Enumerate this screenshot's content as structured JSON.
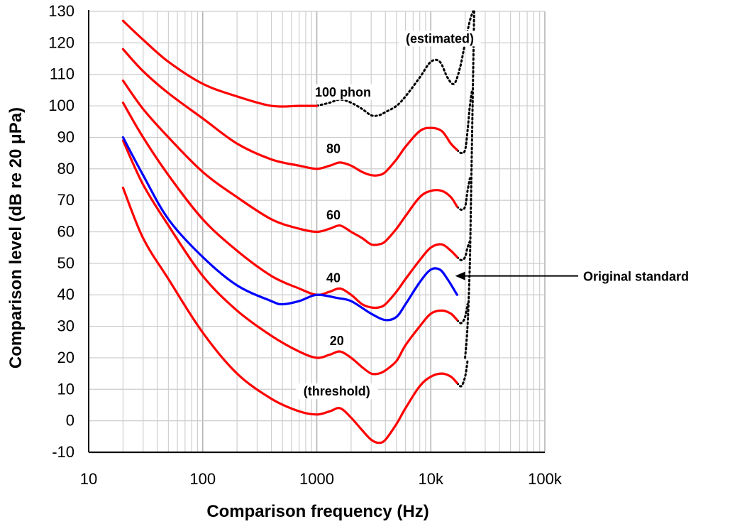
{
  "chart_data": {
    "type": "line",
    "xlabel": "Comparison frequency (Hz)",
    "ylabel": "Comparison level (dB re 20 μPa)",
    "xscale": "log",
    "xlim": [
      10,
      100000
    ],
    "ylim": [
      -10,
      130
    ],
    "x_ticks": [
      {
        "value": 10,
        "label": "10"
      },
      {
        "value": 100,
        "label": "100"
      },
      {
        "value": 1000,
        "label": "1000"
      },
      {
        "value": 10000,
        "label": "10k"
      },
      {
        "value": 100000,
        "label": "100k"
      }
    ],
    "y_ticks": [
      -10,
      0,
      10,
      20,
      30,
      40,
      50,
      60,
      70,
      80,
      90,
      100,
      110,
      120,
      130
    ],
    "grid": true,
    "colors": {
      "contour": "#ff0000",
      "standard": "#0000ff",
      "estimated": "#000000"
    },
    "series": [
      {
        "label": "(threshold)",
        "color": "#ff0000",
        "x": [
          20,
          30,
          50,
          100,
          200,
          400,
          700,
          1000,
          1300,
          1600,
          2000,
          2500,
          3000,
          3500,
          4000,
          5000,
          6000,
          8000,
          10000,
          12500,
          15000,
          17000
        ],
        "y": [
          74,
          58,
          45,
          28,
          15,
          7,
          3,
          2,
          3,
          4,
          1,
          -3,
          -6,
          -7,
          -6,
          -1,
          4,
          11,
          14,
          15,
          14,
          12
        ]
      },
      {
        "label": "20",
        "color": "#ff0000",
        "x": [
          20,
          30,
          50,
          100,
          200,
          400,
          700,
          1000,
          1300,
          1600,
          2000,
          2500,
          3000,
          3500,
          4000,
          5000,
          6000,
          8000,
          10000,
          12500,
          15000,
          17000
        ],
        "y": [
          89,
          75,
          62,
          46,
          35,
          27,
          22,
          20,
          21,
          22,
          20,
          17,
          15,
          15,
          16,
          19,
          24,
          30,
          34,
          35,
          34,
          32
        ]
      },
      {
        "label": "40",
        "color": "#ff0000",
        "x": [
          20,
          30,
          50,
          100,
          200,
          400,
          700,
          1000,
          1300,
          1600,
          2000,
          2500,
          3000,
          3500,
          4000,
          5000,
          6000,
          8000,
          10000,
          12500,
          15000,
          17000
        ],
        "y": [
          101,
          90,
          78,
          64,
          54,
          46,
          42,
          40,
          41,
          42,
          40,
          37,
          36,
          36,
          37,
          41,
          45,
          51,
          55,
          56,
          54,
          52
        ]
      },
      {
        "label": "60",
        "color": "#ff0000",
        "x": [
          20,
          30,
          50,
          100,
          200,
          400,
          700,
          1000,
          1300,
          1600,
          2000,
          2500,
          3000,
          3500,
          4000,
          5000,
          6000,
          8000,
          10000,
          12500,
          15000,
          17000
        ],
        "y": [
          108,
          99,
          90,
          79,
          71,
          64,
          61,
          60,
          61,
          62,
          60,
          58,
          56,
          56,
          57,
          61,
          65,
          71,
          73,
          73,
          71,
          68
        ]
      },
      {
        "label": "80",
        "color": "#ff0000",
        "x": [
          20,
          30,
          50,
          100,
          200,
          400,
          700,
          1000,
          1300,
          1600,
          2000,
          2500,
          3000,
          3500,
          4000,
          5000,
          6000,
          8000,
          10000,
          12500,
          15000,
          17000
        ],
        "y": [
          118,
          111,
          104,
          96,
          88,
          83,
          81,
          80,
          81,
          82,
          81,
          79,
          78,
          78,
          79,
          83,
          87,
          92,
          93,
          92,
          88,
          86
        ]
      },
      {
        "label": "100 phon",
        "color": "#ff0000",
        "x": [
          20,
          30,
          50,
          100,
          200,
          400,
          700,
          1000
        ],
        "y": [
          127,
          121,
          114,
          107,
          103,
          100,
          100,
          100
        ]
      },
      {
        "label": "Original standard",
        "color": "#0000ff",
        "x": [
          20,
          30,
          50,
          100,
          200,
          400,
          500,
          700,
          1000,
          1500,
          2000,
          3000,
          4000,
          5000,
          6000,
          8000,
          10000,
          12000,
          14000,
          17000
        ],
        "y": [
          90,
          78,
          64,
          52,
          43,
          38,
          37,
          38,
          40,
          39,
          38,
          34,
          32,
          33,
          37,
          44,
          48,
          48,
          45,
          40
        ]
      },
      {
        "label": "(estimated)",
        "color": "#000000",
        "dashed": true,
        "x": [
          1000,
          1300,
          1600,
          2000,
          2500,
          3000,
          3500,
          4000,
          5000,
          6000,
          8000,
          10000,
          12000,
          14000,
          16000,
          18000,
          20000,
          22000,
          23500
        ],
        "y": [
          100,
          101,
          102,
          101,
          99,
          97,
          97,
          98,
          100,
          103,
          109,
          114,
          114,
          109,
          107,
          112,
          120,
          127,
          130
        ]
      },
      {
        "label": "",
        "color": "#000000",
        "dashed": true,
        "x": [
          17000,
          18500,
          20000,
          21000,
          22000,
          23000
        ],
        "y": [
          86,
          85,
          86,
          92,
          100,
          105
        ]
      },
      {
        "label": "",
        "color": "#000000",
        "dashed": true,
        "x": [
          17000,
          18500,
          20000,
          21000,
          22000
        ],
        "y": [
          68,
          67,
          68,
          73,
          77
        ]
      },
      {
        "label": "",
        "color": "#000000",
        "dashed": true,
        "x": [
          17000,
          18500,
          20000,
          21000,
          22000
        ],
        "y": [
          52,
          51,
          52,
          55,
          57
        ]
      },
      {
        "label": "",
        "color": "#000000",
        "dashed": true,
        "x": [
          17000,
          18500,
          20000,
          21000
        ],
        "y": [
          32,
          31,
          33,
          37
        ]
      },
      {
        "label": "",
        "color": "#000000",
        "dashed": true,
        "x": [
          17000,
          18500,
          20000,
          21000
        ],
        "y": [
          12,
          11,
          14,
          19
        ]
      },
      {
        "label": "",
        "color": "#000000",
        "dashed": true,
        "x": [
          20000,
          21000,
          22000,
          22500,
          23000,
          23500,
          24000
        ],
        "y": [
          20,
          30,
          50,
          70,
          90,
          110,
          130
        ]
      }
    ],
    "curve_labels": [
      {
        "text": "100 phon",
        "x": 1700,
        "y": 103
      },
      {
        "text": "80",
        "x": 1400,
        "y": 85
      },
      {
        "text": "60",
        "x": 1400,
        "y": 64
      },
      {
        "text": "40",
        "x": 1400,
        "y": 44
      },
      {
        "text": "20",
        "x": 1500,
        "y": 24
      },
      {
        "text": "(threshold)",
        "x": 1500,
        "y": 8
      },
      {
        "text": "(estimated)",
        "x": 12000,
        "y": 120
      }
    ],
    "annotation": {
      "text": "Original standard",
      "target_x": 20000,
      "target_y": 46
    }
  }
}
